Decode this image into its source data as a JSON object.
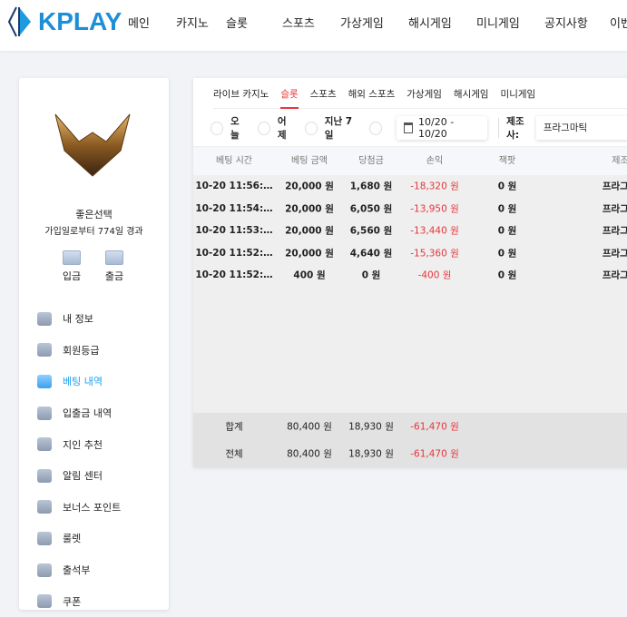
{
  "brand": {
    "name": "KPLAY",
    "accent": "#1d8fd8"
  },
  "nav": [
    "메인",
    "카지노",
    "슬롯",
    "스포츠",
    "가상게임",
    "해시게임",
    "미니게임",
    "공지사항",
    "이벤트"
  ],
  "profile": {
    "name": "좋은선택",
    "days": "가입일로부터 774일 경과",
    "deposit": "입금",
    "withdraw": "출금"
  },
  "menu": [
    {
      "label": "내 정보",
      "icon": "user-icon"
    },
    {
      "label": "회원등급",
      "icon": "diamond-icon"
    },
    {
      "label": "베팅 내역",
      "icon": "edit-icon",
      "active": true
    },
    {
      "label": "입출금 내역",
      "icon": "wallet-icon"
    },
    {
      "label": "지인 추천",
      "icon": "heart-mail-icon"
    },
    {
      "label": "알림 센터",
      "icon": "chat-icon"
    },
    {
      "label": "보너스 포인트",
      "icon": "wallet-icon"
    },
    {
      "label": "룰렛",
      "icon": "star-icon"
    },
    {
      "label": "출석부",
      "icon": "edit-icon"
    },
    {
      "label": "쿠폰",
      "icon": "coupon-icon"
    }
  ],
  "tabs": [
    "라이브 카지노",
    "슬롯",
    "스포츠",
    "해외 스포츠",
    "가상게임",
    "해시게임",
    "미니게임"
  ],
  "active_tab": "슬롯",
  "filters": {
    "today": "오늘",
    "yesterday": "어제",
    "last7": "지난 7일",
    "date_range": "10/20 - 10/20",
    "provider_label": "제조사:",
    "provider_value": "프라그마틱"
  },
  "columns": [
    "베팅 시간",
    "베팅 금액",
    "당첨금",
    "손익",
    "잭팟",
    "제조사"
  ],
  "rows": [
    [
      "10-20 11:56:…",
      "20,000 원",
      "1,680 원",
      "-18,320 원",
      "0 원",
      "프라그마틱"
    ],
    [
      "10-20 11:54:…",
      "20,000 원",
      "6,050 원",
      "-13,950 원",
      "0 원",
      "프라그마틱"
    ],
    [
      "10-20 11:53:…",
      "20,000 원",
      "6,560 원",
      "-13,440 원",
      "0 원",
      "프라그마틱"
    ],
    [
      "10-20 11:52:…",
      "20,000 원",
      "4,640 원",
      "-15,360 원",
      "0 원",
      "프라그마틱"
    ],
    [
      "10-20 11:52:…",
      "400 원",
      "0 원",
      "-400 원",
      "0 원",
      "프라그마틱"
    ]
  ],
  "totals": [
    [
      "합계",
      "80,400 원",
      "18,930 원",
      "-61,470 원"
    ],
    [
      "전체",
      "80,400 원",
      "18,930 원",
      "-61,470 원"
    ]
  ],
  "colors": {
    "negative": "#e8353a",
    "active_menu": "#1a9ff0"
  }
}
